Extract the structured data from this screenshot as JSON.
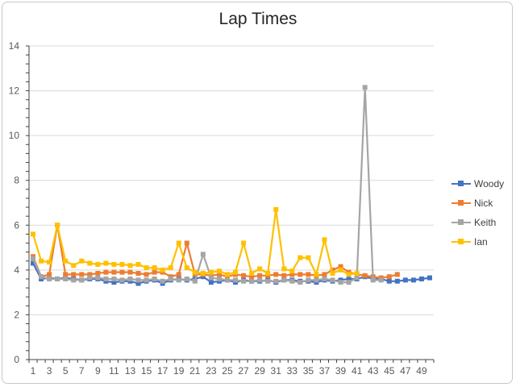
{
  "chart_data": {
    "type": "line",
    "title": "Lap Times",
    "xlabel": "",
    "ylabel": "",
    "ylim": [
      0,
      14
    ],
    "yticks": [
      0,
      2,
      4,
      6,
      8,
      10,
      12,
      14
    ],
    "xlim": [
      1,
      50
    ],
    "xtick_labels": [
      1,
      3,
      5,
      7,
      9,
      11,
      13,
      15,
      17,
      19,
      21,
      23,
      25,
      27,
      29,
      31,
      33,
      35,
      37,
      39,
      41,
      43,
      45,
      47,
      49
    ],
    "grid": "horizontal",
    "legend_position": "right",
    "series": [
      {
        "name": "Woody",
        "color": "#4472C4",
        "x": [
          1,
          2,
          3,
          4,
          5,
          6,
          7,
          8,
          9,
          10,
          11,
          12,
          13,
          14,
          15,
          16,
          17,
          18,
          19,
          20,
          21,
          22,
          23,
          24,
          25,
          26,
          27,
          28,
          29,
          30,
          31,
          32,
          33,
          34,
          35,
          36,
          37,
          38,
          39,
          40,
          41,
          42,
          43,
          44,
          45,
          46,
          47,
          48,
          49,
          50
        ],
        "values": [
          4.3,
          3.6,
          3.65,
          3.6,
          3.65,
          3.6,
          3.55,
          3.6,
          3.6,
          3.5,
          3.45,
          3.5,
          3.5,
          3.4,
          3.5,
          3.55,
          3.4,
          3.55,
          3.6,
          3.55,
          3.6,
          3.7,
          3.45,
          3.5,
          3.55,
          3.45,
          3.55,
          3.5,
          3.5,
          3.55,
          3.45,
          3.55,
          3.55,
          3.5,
          3.5,
          3.45,
          3.55,
          3.5,
          3.55,
          3.6,
          3.6,
          3.7,
          3.6,
          3.6,
          3.5,
          3.5,
          3.55,
          3.55,
          3.6,
          3.65
        ]
      },
      {
        "name": "Nick",
        "color": "#ED7D31",
        "x": [
          1,
          2,
          3,
          4,
          5,
          6,
          7,
          8,
          9,
          10,
          11,
          12,
          13,
          14,
          15,
          16,
          17,
          18,
          19,
          20,
          21,
          22,
          23,
          24,
          25,
          26,
          27,
          28,
          29,
          30,
          31,
          32,
          33,
          34,
          35,
          36,
          37,
          38,
          39,
          40,
          41,
          42,
          43,
          44,
          45,
          46
        ],
        "values": [
          4.6,
          3.7,
          3.8,
          6.0,
          3.8,
          3.8,
          3.8,
          3.8,
          3.85,
          3.9,
          3.9,
          3.9,
          3.9,
          3.85,
          3.8,
          3.9,
          3.9,
          3.7,
          3.8,
          5.2,
          3.8,
          3.8,
          3.75,
          3.8,
          3.7,
          3.8,
          3.75,
          3.7,
          3.75,
          3.75,
          3.8,
          3.75,
          3.8,
          3.8,
          3.8,
          3.75,
          3.8,
          4.0,
          4.15,
          3.9,
          3.8,
          3.75,
          3.7,
          3.65,
          3.7,
          3.8
        ]
      },
      {
        "name": "Keith",
        "color": "#A5A5A5",
        "x": [
          1,
          2,
          3,
          4,
          5,
          6,
          7,
          8,
          9,
          10,
          11,
          12,
          13,
          14,
          15,
          16,
          17,
          18,
          19,
          20,
          21,
          22,
          23,
          24,
          25,
          26,
          27,
          28,
          29,
          30,
          31,
          32,
          33,
          34,
          35,
          36,
          37,
          38,
          39,
          40,
          41,
          42,
          43,
          44
        ],
        "values": [
          4.5,
          3.7,
          3.6,
          3.6,
          3.6,
          3.55,
          3.55,
          3.65,
          3.65,
          3.6,
          3.6,
          3.55,
          3.6,
          3.55,
          3.55,
          3.6,
          3.5,
          3.6,
          3.55,
          3.6,
          3.5,
          4.7,
          3.65,
          3.6,
          3.55,
          3.55,
          3.5,
          3.5,
          3.55,
          3.5,
          3.5,
          3.55,
          3.5,
          3.45,
          3.55,
          3.55,
          3.6,
          3.55,
          3.45,
          3.45,
          3.65,
          12.15,
          3.55,
          3.55
        ]
      },
      {
        "name": "Ian",
        "color": "#FFC000",
        "x": [
          1,
          2,
          3,
          4,
          5,
          6,
          7,
          8,
          9,
          10,
          11,
          12,
          13,
          14,
          15,
          16,
          17,
          18,
          19,
          20,
          21,
          22,
          23,
          24,
          25,
          26,
          27,
          28,
          29,
          30,
          31,
          32,
          33,
          34,
          35,
          36,
          37,
          38,
          39,
          40,
          41
        ],
        "values": [
          5.6,
          4.4,
          4.35,
          6.0,
          4.4,
          4.2,
          4.4,
          4.3,
          4.25,
          4.3,
          4.25,
          4.25,
          4.2,
          4.25,
          4.1,
          4.1,
          4.0,
          4.1,
          5.2,
          4.1,
          3.9,
          3.85,
          3.9,
          3.95,
          3.8,
          3.9,
          5.2,
          3.85,
          4.05,
          3.85,
          6.7,
          4.05,
          3.95,
          4.55,
          4.55,
          3.8,
          5.35,
          3.85,
          4.0,
          3.8,
          3.85
        ]
      }
    ]
  }
}
